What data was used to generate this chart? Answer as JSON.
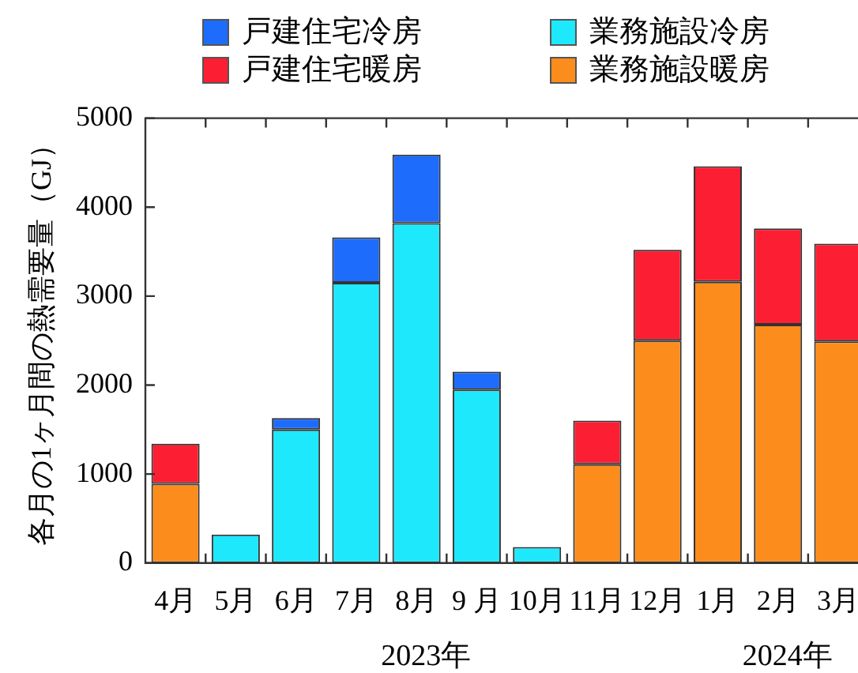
{
  "chart_data": {
    "type": "bar",
    "stacked": true,
    "ylabel": "各月の1ヶ月間の熱需要量（GJ）",
    "categories": [
      "4月",
      "5月",
      "6月",
      "7月",
      "8月",
      "9 月",
      "10月",
      "11月",
      "12月",
      "1月",
      "2月",
      "3月"
    ],
    "series": [
      {
        "name": "業務施設冷房",
        "color": "#1ee8fc",
        "values": [
          null,
          320,
          1500,
          3150,
          3820,
          1950,
          180,
          null,
          null,
          null,
          null,
          null
        ]
      },
      {
        "name": "業務施設暖房",
        "color": "#fc8c1c",
        "values": [
          890,
          null,
          null,
          null,
          null,
          null,
          null,
          1110,
          2500,
          3160,
          2680,
          2490
        ]
      },
      {
        "name": "戸建住宅冷房",
        "color": "#1e6cfc",
        "values": [
          null,
          null,
          130,
          510,
          770,
          200,
          null,
          null,
          null,
          null,
          null,
          null
        ]
      },
      {
        "name": "戸建住宅暖房",
        "color": "#fc1e32",
        "values": [
          450,
          null,
          null,
          null,
          null,
          null,
          null,
          490,
          1020,
          1300,
          1080,
          1100
        ]
      }
    ],
    "ylim": [
      0,
      5000
    ],
    "yticks": [
      0,
      1000,
      2000,
      3000,
      4000,
      5000
    ],
    "grid": false,
    "legend": "top",
    "annotations": [
      "2023年",
      "2024年"
    ]
  }
}
